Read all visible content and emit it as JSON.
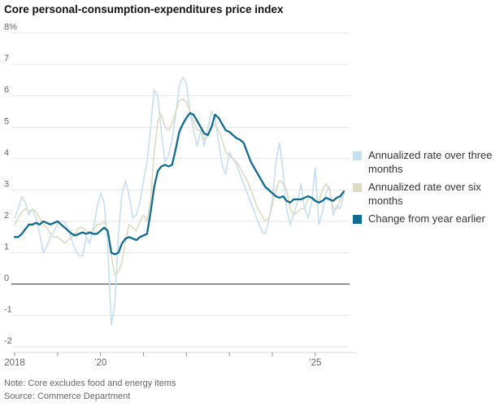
{
  "title": "Core personal-consumption-expenditures price index",
  "note": "Note: Core excludes food and energy items",
  "source": "Source: Commerce Department",
  "colors": {
    "three_month": "#c7dff1",
    "six_month": "#dcdcc2",
    "year_earlier": "#0e6c93",
    "grid": "#e7e7e7",
    "zero_line": "#919191",
    "axis_line": "#d8d8d8",
    "tick_mark": "#8f8f8f",
    "axis_text": "#666666",
    "title_text": "#111111",
    "legend_text": "#333333"
  },
  "legend": [
    {
      "label": "Annualized rate over three months",
      "color": "#c7dff1"
    },
    {
      "label": "Annualized rate over six months",
      "color": "#dcdcc2"
    },
    {
      "label": "Change from year earlier",
      "color": "#0e6c93"
    }
  ],
  "chart_data": {
    "type": "line",
    "title": "Core personal-consumption-expenditures price index",
    "x_unit": "month",
    "x_range": [
      "2018-01",
      "2025-09"
    ],
    "ylim": [
      -2,
      8
    ],
    "grid": "on",
    "legend_position": "right",
    "y_ticks": [
      {
        "value": 8,
        "label": "8%"
      },
      {
        "value": 7,
        "label": "7"
      },
      {
        "value": 6,
        "label": "6"
      },
      {
        "value": 5,
        "label": "5"
      },
      {
        "value": 4,
        "label": "4"
      },
      {
        "value": 3,
        "label": "3"
      },
      {
        "value": 2,
        "label": "2"
      },
      {
        "value": 1,
        "label": "1"
      },
      {
        "value": 0,
        "label": "0"
      },
      {
        "value": -1,
        "label": "-1"
      },
      {
        "value": -2,
        "label": "-2"
      }
    ],
    "x_ticks": [
      {
        "year": 2018,
        "label": "2018"
      },
      {
        "year": 2019,
        "label": ""
      },
      {
        "year": 2020,
        "label": "’20"
      },
      {
        "year": 2021,
        "label": ""
      },
      {
        "year": 2022,
        "label": ""
      },
      {
        "year": 2023,
        "label": ""
      },
      {
        "year": 2024,
        "label": ""
      },
      {
        "year": 2025,
        "label": "’25"
      }
    ],
    "series": [
      {
        "name": "Annualized rate over three months",
        "color": "#c7dff1",
        "values": [
          2.1,
          2.4,
          2.8,
          2.6,
          2.2,
          2.4,
          2.1,
          1.6,
          1.0,
          1.2,
          1.5,
          1.7,
          1.9,
          2.0,
          2.0,
          1.7,
          1.4,
          1.1,
          0.9,
          0.9,
          1.5,
          1.3,
          1.8,
          2.4,
          2.9,
          2.6,
          1.2,
          -1.3,
          -0.6,
          1.6,
          2.9,
          3.3,
          2.8,
          2.1,
          2.2,
          2.6,
          3.3,
          3.9,
          5.0,
          6.2,
          6.0,
          4.8,
          3.9,
          4.1,
          4.6,
          5.4,
          6.3,
          6.6,
          6.4,
          5.5,
          4.9,
          4.4,
          4.9,
          4.4,
          5.0,
          5.5,
          5.3,
          4.5,
          3.8,
          3.5,
          4.2,
          4.0,
          3.8,
          3.5,
          3.2,
          2.9,
          2.6,
          2.3,
          2.0,
          1.7,
          1.6,
          2.0,
          2.7,
          3.9,
          4.5,
          3.6,
          2.4,
          1.9,
          2.2,
          2.6,
          3.2,
          2.4,
          2.1,
          2.6,
          3.7,
          1.9,
          2.3,
          2.9,
          3.1,
          2.2,
          2.5,
          2.4,
          2.9
        ]
      },
      {
        "name": "Annualized rate over six months",
        "color": "#dcdcc2",
        "values": [
          1.9,
          2.1,
          2.3,
          2.4,
          2.3,
          2.4,
          2.3,
          2.1,
          1.9,
          1.8,
          1.6,
          1.5,
          1.5,
          1.4,
          1.3,
          1.4,
          1.5,
          1.6,
          1.8,
          1.8,
          1.7,
          1.6,
          1.7,
          1.9,
          1.9,
          2.0,
          1.7,
          0.9,
          0.3,
          0.4,
          0.7,
          1.4,
          1.9,
          1.8,
          1.7,
          2.0,
          2.2,
          2.0,
          2.7,
          4.2,
          5.2,
          5.4,
          5.0,
          4.9,
          5.1,
          5.5,
          5.85,
          5.9,
          5.8,
          5.5,
          5.2,
          4.9,
          4.9,
          4.6,
          4.7,
          5.0,
          5.1,
          4.9,
          4.6,
          4.2,
          4.1,
          4.0,
          3.9,
          3.7,
          3.5,
          3.3,
          3.0,
          2.7,
          2.4,
          2.2,
          2.0,
          2.1,
          2.5,
          3.0,
          3.3,
          3.2,
          3.0,
          2.4,
          2.2,
          2.3,
          2.4,
          2.4,
          2.7,
          2.8,
          2.7,
          2.6,
          3.0,
          3.2,
          3.0,
          2.4,
          2.4,
          2.7,
          3.0
        ]
      },
      {
        "name": "Change from year earlier",
        "color": "#0e6c93",
        "values": [
          1.5,
          1.5,
          1.6,
          1.75,
          1.9,
          1.9,
          1.95,
          1.9,
          2.0,
          1.95,
          1.9,
          1.95,
          2.0,
          1.9,
          1.8,
          1.7,
          1.6,
          1.55,
          1.6,
          1.65,
          1.6,
          1.65,
          1.6,
          1.6,
          1.7,
          1.8,
          1.7,
          1.0,
          0.95,
          1.0,
          1.3,
          1.45,
          1.5,
          1.45,
          1.4,
          1.5,
          1.55,
          1.6,
          2.3,
          3.1,
          3.6,
          3.75,
          3.8,
          3.75,
          3.8,
          4.3,
          4.85,
          5.1,
          5.3,
          5.45,
          5.4,
          5.2,
          5.0,
          4.8,
          4.75,
          5.0,
          5.4,
          5.3,
          5.1,
          4.9,
          4.85,
          4.75,
          4.65,
          4.6,
          4.5,
          4.2,
          3.9,
          3.7,
          3.5,
          3.3,
          3.1,
          3.0,
          2.9,
          2.8,
          2.75,
          2.8,
          2.65,
          2.6,
          2.7,
          2.7,
          2.7,
          2.75,
          2.8,
          2.75,
          2.65,
          2.6,
          2.65,
          2.75,
          2.7,
          2.65,
          2.75,
          2.8,
          2.95
        ]
      }
    ]
  }
}
